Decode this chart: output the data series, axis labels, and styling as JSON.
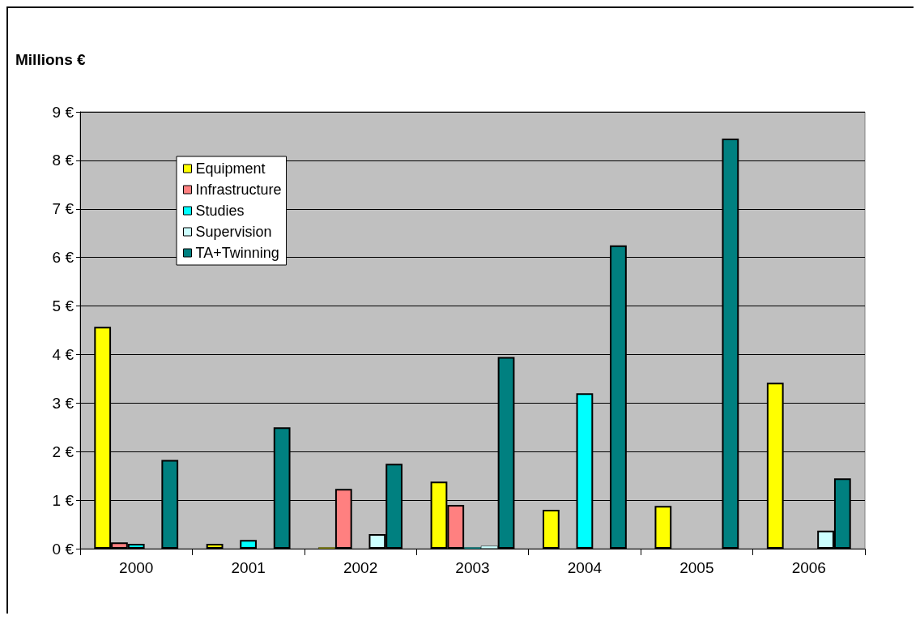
{
  "chart_data": {
    "type": "bar",
    "ylabel": "Millions €",
    "categories": [
      "2000",
      "2001",
      "2002",
      "2003",
      "2004",
      "2005",
      "2006"
    ],
    "series": [
      {
        "name": "Equipment",
        "color": "#ffff00",
        "values": [
          4.57,
          0.1,
          0.03,
          1.38,
          0.8,
          0.88,
          3.42
        ]
      },
      {
        "name": "Infrastructure",
        "color": "#ff8080",
        "values": [
          0.13,
          0,
          1.23,
          0.9,
          0,
          0,
          0
        ]
      },
      {
        "name": "Studies",
        "color": "#00ffff",
        "values": [
          0.1,
          0.18,
          0,
          0.03,
          3.2,
          0,
          0
        ]
      },
      {
        "name": "Supervision",
        "color": "#ccffff",
        "values": [
          0,
          0,
          0.3,
          0.06,
          0,
          0,
          0.37
        ]
      },
      {
        "name": "TA+Twinning",
        "color": "#008080",
        "values": [
          1.83,
          2.5,
          1.75,
          3.95,
          6.25,
          8.45,
          1.45
        ]
      }
    ],
    "ylim": [
      0,
      9
    ],
    "yticks": [
      {
        "value": 0,
        "label": "0 €"
      },
      {
        "value": 1,
        "label": "1 €"
      },
      {
        "value": 2,
        "label": "2 €"
      },
      {
        "value": 3,
        "label": "3 €"
      },
      {
        "value": 4,
        "label": "4 €"
      },
      {
        "value": 5,
        "label": "5 €"
      },
      {
        "value": 6,
        "label": "6 €"
      },
      {
        "value": 7,
        "label": "7 €"
      },
      {
        "value": 8,
        "label": "8 €"
      },
      {
        "value": 9,
        "label": "9 €"
      }
    ],
    "grid": "y",
    "legend": "top left"
  }
}
